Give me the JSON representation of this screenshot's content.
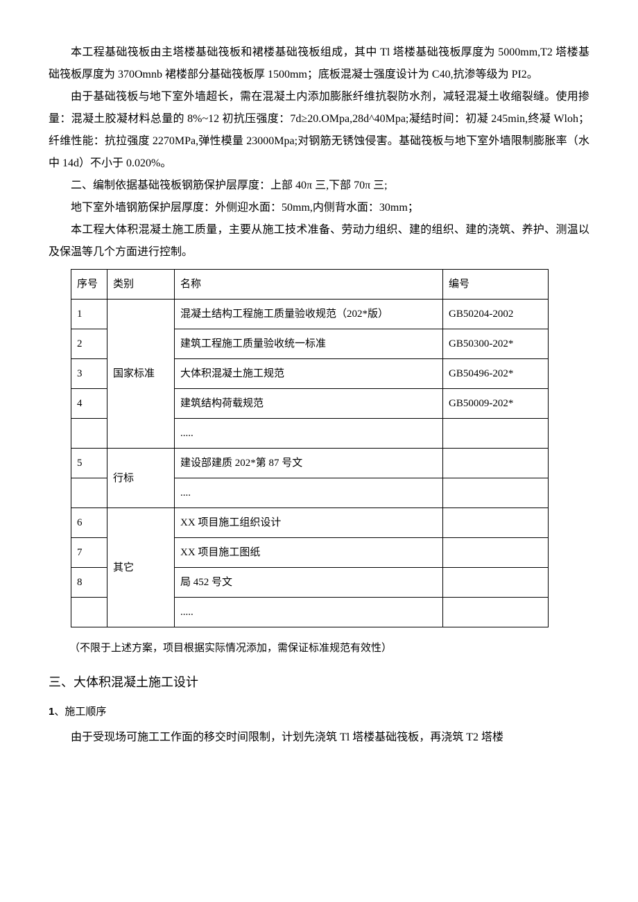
{
  "paragraphs": {
    "p1": "本工程基础筏板由主塔楼基础筏板和裙楼基础筏板组成，其中 Tl 塔楼基础筏板厚度为 5000mm,T2 塔楼基础筏板厚度为 370Omnb 裙楼部分基础筏板厚 1500mm；底板混凝士强度设计为 C40,抗渗等级为 PI2。",
    "p2": "由于基础筏板与地下室外墙超长，需在混凝土内添加膨胀纤维抗裂防水剂，减轻混凝土收缩裂缝。使用掺量：混凝土胶凝材料总量的 8%~12 初抗压强度：7d≥20.OMpa,28d^40Mpa;凝结时间：初凝 245min,终凝 Wloh；纤维性能：抗拉强度 2270MPa,弹性模量 23000Mpa;对钢筋无锈蚀侵害。基础筏板与地下室外墙限制膨胀率（水中 14d）不小于 0.020%。",
    "p3": "二、编制依据基础筏板钢筋保护层厚度：上部 40π 三,下部 70π 三;",
    "p4": "地下室外墙钢筋保护层厚度：外侧迎水面：50mm,内侧背水面：30mm；",
    "p5": "本工程大体积混凝土施工质量，主要从施工技术准备、劳动力组织、建的组织、建的浇筑、养护、测温以及保温等几个方面进行控制。"
  },
  "table": {
    "headers": {
      "seq": "序号",
      "category": "类别",
      "name": "名称",
      "code": "编号"
    },
    "rows": [
      {
        "seq": "1",
        "cat": "",
        "name": "混凝土结构工程施工质量验收规范（202*版）",
        "code": "GB50204-2002"
      },
      {
        "seq": "2",
        "cat": "",
        "name": "建筑工程施工质量验收统一标准",
        "code": "GB50300-202*"
      },
      {
        "seq": "3",
        "cat": "",
        "name": "大体积混凝土施工规范",
        "code": "GB50496-202*"
      },
      {
        "seq": "4",
        "cat": "",
        "name": "建筑结构荷载规范",
        "code": "GB50009-202*"
      },
      {
        "seq": "",
        "cat": "",
        "name": ".....",
        "code": ""
      },
      {
        "seq": "5",
        "cat": "",
        "name": "建设部建质 202*第 87 号文",
        "code": ""
      },
      {
        "seq": "",
        "cat": "",
        "name": "....",
        "code": ""
      },
      {
        "seq": "6",
        "cat": "",
        "name": "XX 项目施工组织设计",
        "code": ""
      },
      {
        "seq": "7",
        "cat": "",
        "name": "XX 项目施工图纸",
        "code": ""
      },
      {
        "seq": "8",
        "cat": "",
        "name": "局 452 号文",
        "code": ""
      },
      {
        "seq": "",
        "cat": "",
        "name": ".....",
        "code": ""
      }
    ],
    "cat_labels": {
      "national": "国家标准",
      "industry": "行标",
      "other": "其它"
    }
  },
  "table_note": "（不限于上述方案，项目根据实际情况添加，需保证标准规范有效性）",
  "section3": "三、大体积混凝土施工设计",
  "sub1_num": "1",
  "sub1_text": "、施工顺序",
  "p_last": "由于受现场可施工工作面的移交时间限制，计划先浇筑 Tl 塔楼基础筏板，再浇筑 T2 塔楼"
}
